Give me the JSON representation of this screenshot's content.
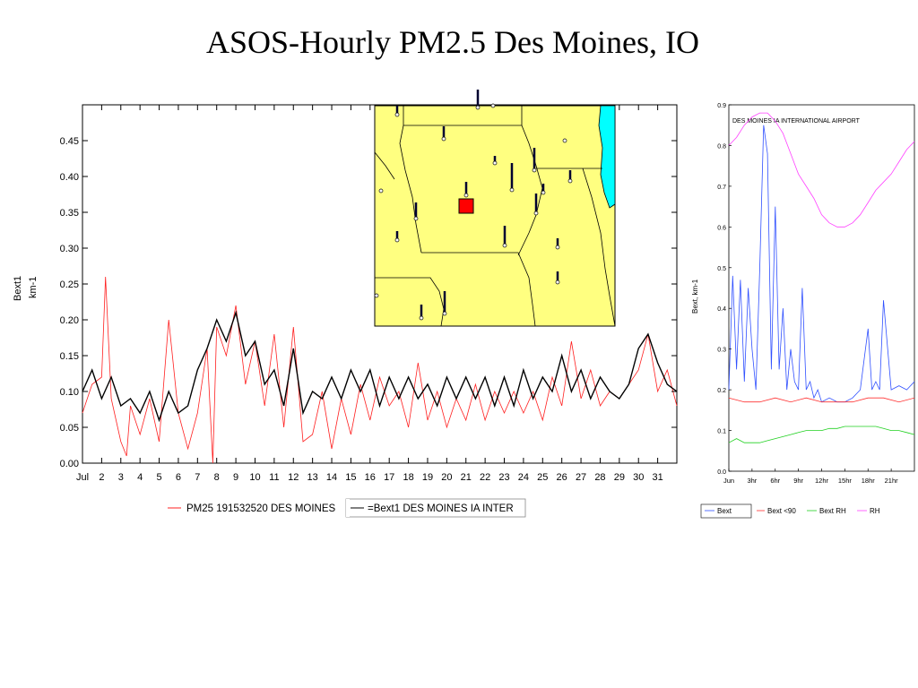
{
  "page": {
    "title": "ASOS-Hourly PM2.5 Des Moines, IO"
  },
  "colors": {
    "pm25": "#ff2020",
    "bext": "#000000",
    "map_land": "#ffff80",
    "map_water": "#00ffff",
    "station_marker": "#ff0000",
    "blue": "#3050ff",
    "red": "#ff3030",
    "green": "#20d020",
    "magenta": "#ff40ff"
  },
  "chart_data": [
    {
      "id": "main",
      "type": "line",
      "ylabel": "Bext1\nkm-1",
      "ylabel_lines": [
        "Bext1",
        "km-1"
      ],
      "ylim": [
        0,
        0.5
      ],
      "yticks": [
        "0.00",
        "0.05",
        "0.10",
        "0.15",
        "0.20",
        "0.25",
        "0.30",
        "0.35",
        "0.40",
        "0.45"
      ],
      "xlim": [
        1,
        32
      ],
      "xtick_labels": [
        "Jul",
        "2",
        "3",
        "4",
        "5",
        "6",
        "7",
        "8",
        "9",
        "10",
        "11",
        "12",
        "13",
        "14",
        "15",
        "16",
        "17",
        "18",
        "19",
        "20",
        "21",
        "22",
        "23",
        "24",
        "25",
        "26",
        "27",
        "28",
        "29",
        "30",
        "31"
      ],
      "legend": [
        "PM25 191532520 DES MOINES",
        "=Bext1 DES MOINES IA INTER"
      ],
      "series": [
        {
          "name": "PM25 191532520 DES MOINES",
          "x": [
            1,
            1.5,
            2,
            2.2,
            2.5,
            3,
            3.3,
            3.5,
            4,
            4.5,
            5,
            5.5,
            6,
            6.5,
            7,
            7.5,
            7.8,
            8,
            8.5,
            9,
            9.5,
            10,
            10.5,
            11,
            11.5,
            12,
            12.5,
            13,
            13.5,
            14,
            14.5,
            15,
            15.5,
            16,
            16.5,
            17,
            17.5,
            18,
            18.5,
            19,
            19.5,
            20,
            20.5,
            21,
            21.5,
            22,
            22.5,
            23,
            23.5,
            24,
            24.5,
            25,
            25.5,
            26,
            26.5,
            27,
            27.5,
            28,
            28.5,
            29,
            29.5,
            30,
            30.5,
            31,
            31.5,
            32
          ],
          "y": [
            0.07,
            0.11,
            0.12,
            0.26,
            0.09,
            0.03,
            0.01,
            0.08,
            0.04,
            0.09,
            0.03,
            0.2,
            0.07,
            0.02,
            0.07,
            0.16,
            0.0,
            0.19,
            0.15,
            0.22,
            0.11,
            0.17,
            0.08,
            0.18,
            0.05,
            0.19,
            0.03,
            0.04,
            0.1,
            0.02,
            0.09,
            0.04,
            0.11,
            0.06,
            0.12,
            0.08,
            0.1,
            0.05,
            0.14,
            0.06,
            0.1,
            0.05,
            0.09,
            0.06,
            0.11,
            0.06,
            0.1,
            0.07,
            0.1,
            0.07,
            0.1,
            0.06,
            0.12,
            0.08,
            0.17,
            0.09,
            0.13,
            0.08,
            0.1,
            0.09,
            0.11,
            0.13,
            0.18,
            0.1,
            0.13,
            0.08
          ]
        },
        {
          "name": "=Bext1 DES MOINES IA INTER",
          "x": [
            1,
            1.5,
            2,
            2.5,
            3,
            3.5,
            4,
            4.5,
            5,
            5.5,
            6,
            6.5,
            7,
            7.5,
            8,
            8.5,
            9,
            9.5,
            10,
            10.5,
            11,
            11.5,
            12,
            12.5,
            13,
            13.5,
            14,
            14.5,
            15,
            15.5,
            16,
            16.5,
            17,
            17.5,
            18,
            18.5,
            19,
            19.5,
            20,
            20.5,
            21,
            21.5,
            22,
            22.5,
            23,
            23.5,
            24,
            24.5,
            25,
            25.5,
            26,
            26.5,
            27,
            27.5,
            28,
            28.5,
            29,
            29.5,
            30,
            30.5,
            31,
            31.5,
            32
          ],
          "y": [
            0.1,
            0.13,
            0.09,
            0.12,
            0.08,
            0.09,
            0.07,
            0.1,
            0.06,
            0.1,
            0.07,
            0.08,
            0.13,
            0.16,
            0.2,
            0.17,
            0.21,
            0.15,
            0.17,
            0.11,
            0.13,
            0.08,
            0.16,
            0.07,
            0.1,
            0.09,
            0.12,
            0.09,
            0.13,
            0.1,
            0.13,
            0.08,
            0.12,
            0.09,
            0.12,
            0.09,
            0.11,
            0.08,
            0.12,
            0.09,
            0.12,
            0.09,
            0.12,
            0.08,
            0.12,
            0.08,
            0.13,
            0.09,
            0.12,
            0.1,
            0.15,
            0.1,
            0.13,
            0.09,
            0.12,
            0.1,
            0.09,
            0.11,
            0.16,
            0.18,
            0.14,
            0.11,
            0.1
          ]
        }
      ]
    },
    {
      "id": "inset",
      "type": "line",
      "title": "DES MOINES IA INTERNATIONAL AIRPORT",
      "ylabel": "Bext, km-1",
      "ylim": [
        0,
        0.9
      ],
      "yticks": [
        "0.0",
        "0.1",
        "0.2",
        "0.3",
        "0.4",
        "0.5",
        "0.6",
        "0.7",
        "0.8",
        "0.9"
      ],
      "xlim": [
        0,
        24
      ],
      "xtick_labels": [
        "Jun",
        "3hr",
        "6hr",
        "9hr",
        "12hr",
        "15hr",
        "18hr",
        "21hr"
      ],
      "legend": [
        "Bext",
        "Bext <90",
        "Bext RH",
        "RH"
      ],
      "series": [
        {
          "name": "Bext",
          "x": [
            0,
            0.5,
            1,
            1.5,
            2,
            2.5,
            3,
            3.5,
            4,
            4.5,
            5,
            5.5,
            6,
            6.5,
            7,
            7.5,
            8,
            8.5,
            9,
            9.5,
            10,
            10.5,
            11,
            11.5,
            12,
            13,
            14,
            15,
            16,
            17,
            18,
            18.5,
            19,
            19.5,
            20,
            21,
            22,
            23,
            24
          ],
          "y": [
            0.2,
            0.48,
            0.25,
            0.47,
            0.22,
            0.45,
            0.3,
            0.2,
            0.5,
            0.85,
            0.78,
            0.25,
            0.65,
            0.25,
            0.4,
            0.2,
            0.3,
            0.22,
            0.2,
            0.45,
            0.2,
            0.22,
            0.18,
            0.2,
            0.17,
            0.18,
            0.17,
            0.17,
            0.18,
            0.2,
            0.35,
            0.2,
            0.22,
            0.2,
            0.42,
            0.2,
            0.21,
            0.2,
            0.22
          ]
        },
        {
          "name": "Bext <90",
          "x": [
            0,
            2,
            4,
            6,
            8,
            10,
            12,
            14,
            16,
            18,
            20,
            22,
            24
          ],
          "y": [
            0.18,
            0.17,
            0.17,
            0.18,
            0.17,
            0.18,
            0.17,
            0.17,
            0.17,
            0.18,
            0.18,
            0.17,
            0.18
          ]
        },
        {
          "name": "Bext RH",
          "x": [
            0,
            1,
            2,
            3,
            4,
            5,
            6,
            7,
            8,
            9,
            10,
            11,
            12,
            13,
            14,
            15,
            16,
            17,
            18,
            19,
            20,
            21,
            22,
            23,
            24
          ],
          "y": [
            0.07,
            0.08,
            0.07,
            0.07,
            0.07,
            0.075,
            0.08,
            0.085,
            0.09,
            0.095,
            0.1,
            0.1,
            0.1,
            0.105,
            0.105,
            0.11,
            0.11,
            0.11,
            0.11,
            0.11,
            0.105,
            0.1,
            0.1,
            0.095,
            0.09
          ]
        },
        {
          "name": "RH",
          "x": [
            0,
            1,
            2,
            3,
            4,
            5,
            6,
            7,
            8,
            9,
            10,
            11,
            12,
            13,
            14,
            15,
            16,
            17,
            18,
            19,
            20,
            21,
            22,
            23,
            24
          ],
          "y": [
            0.8,
            0.82,
            0.85,
            0.87,
            0.88,
            0.88,
            0.86,
            0.83,
            0.78,
            0.73,
            0.7,
            0.67,
            0.63,
            0.61,
            0.6,
            0.6,
            0.61,
            0.63,
            0.66,
            0.69,
            0.71,
            0.73,
            0.76,
            0.79,
            0.81
          ]
        }
      ]
    }
  ]
}
